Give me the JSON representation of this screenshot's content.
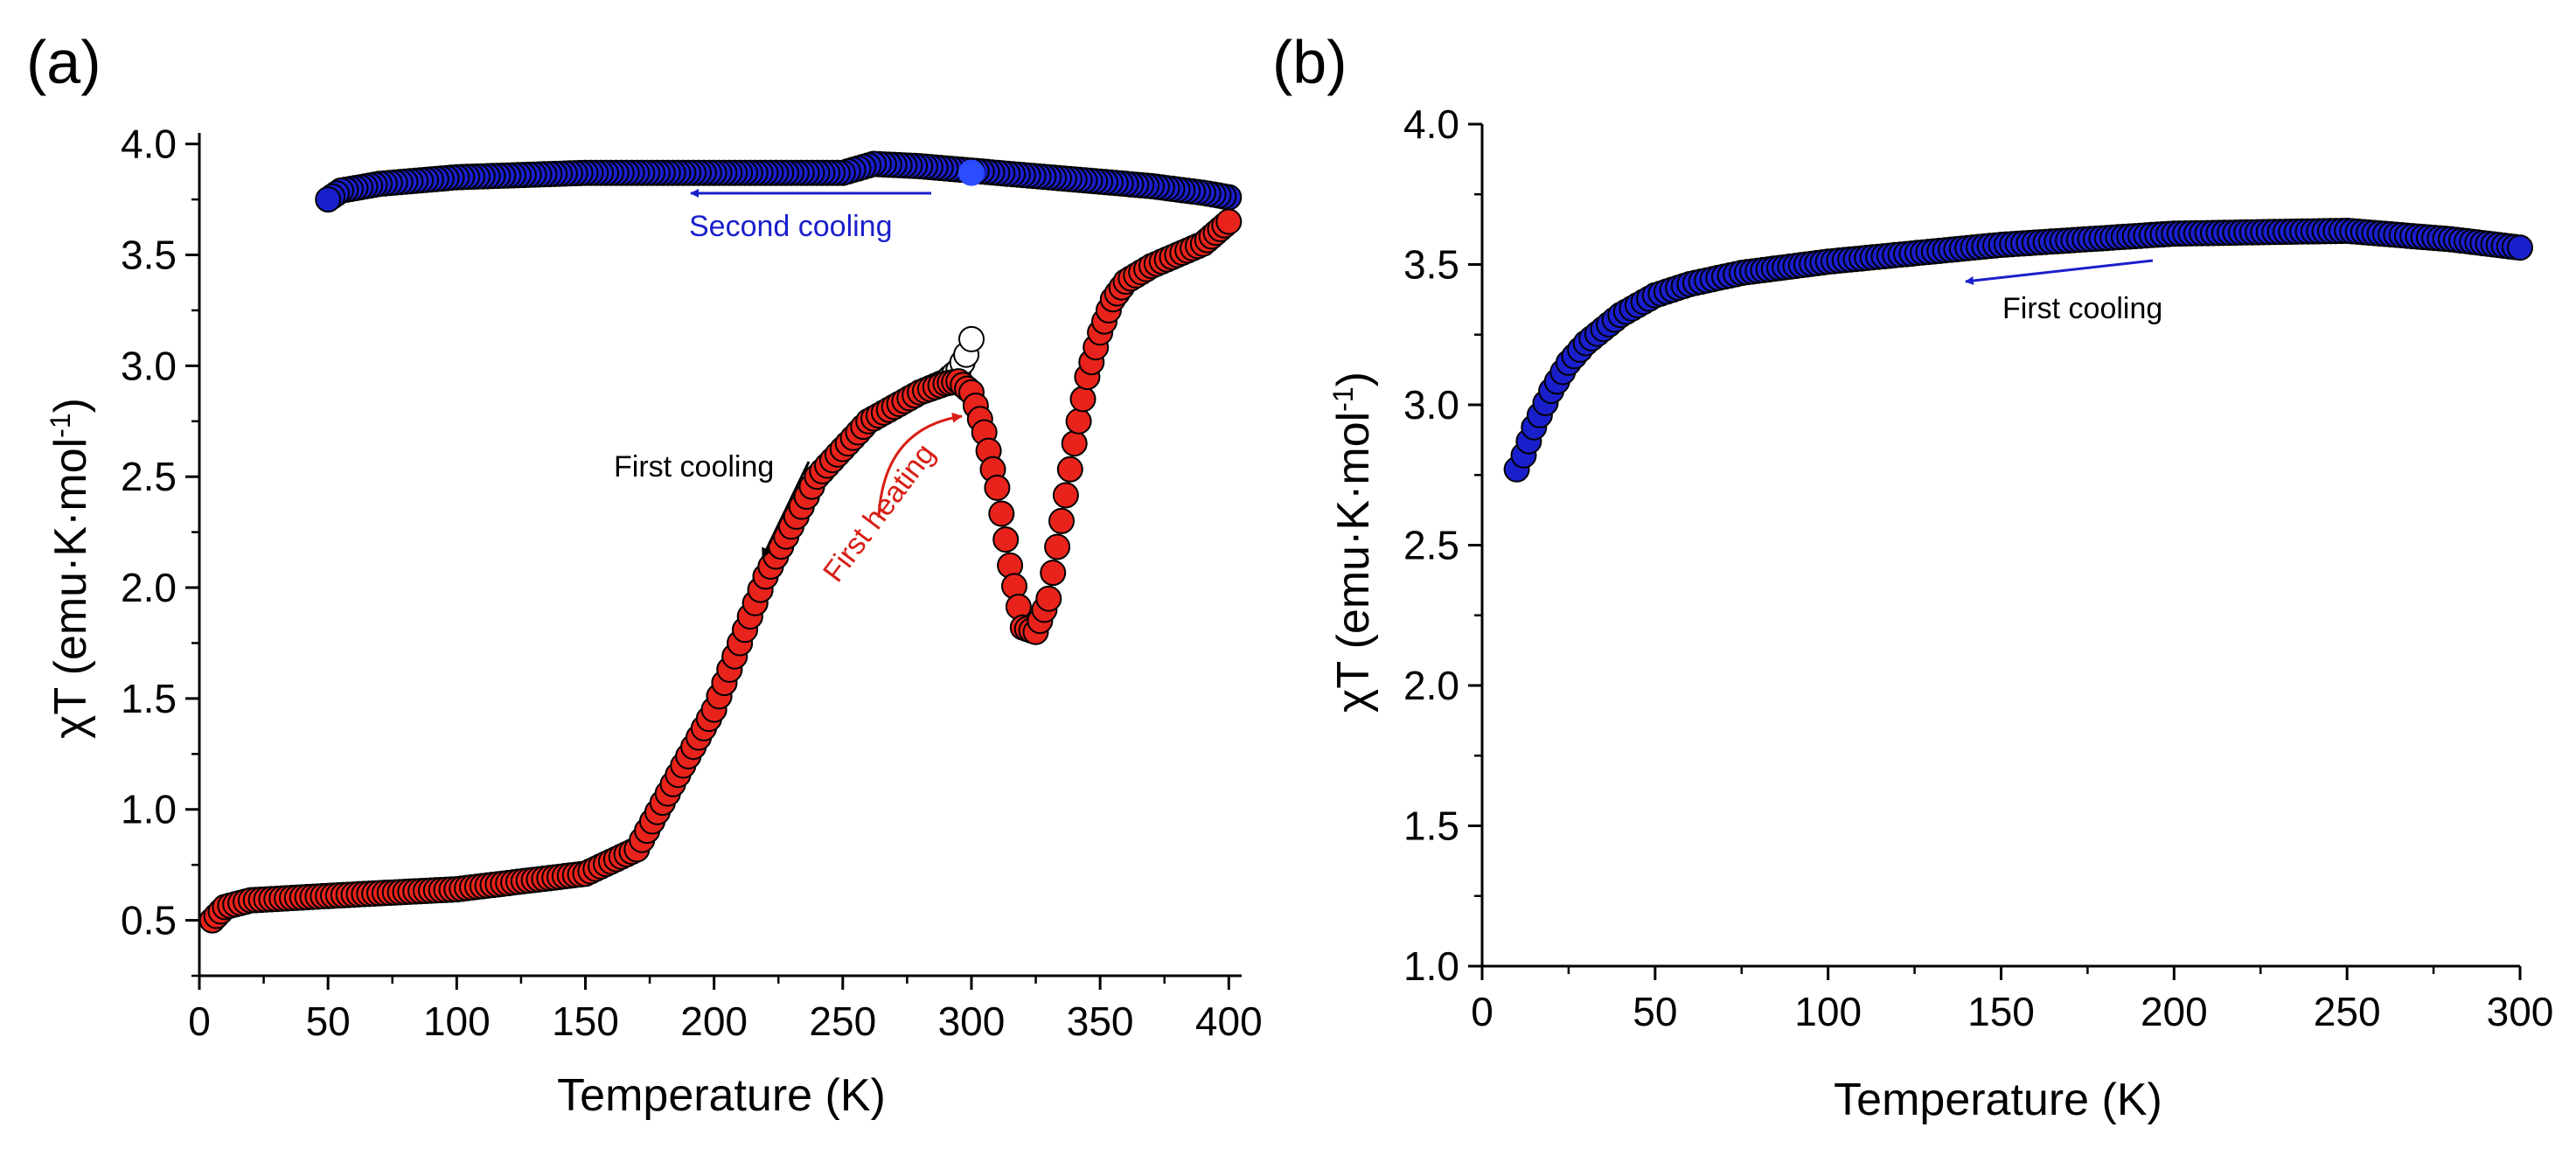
{
  "colors": {
    "first_cooling": "#ffffff",
    "first_heating": "#e8231b",
    "second_cooling": "#1a1fcc",
    "marker_edge": "#000000",
    "annot_red": "#d81e15",
    "annot_blue": "#1a1fcc"
  },
  "chart_data": [
    {
      "panel_label": "(a)",
      "type": "scatter",
      "xlabel": "Temperature (K)",
      "ylabel": "χT (emu·K·mol⁻¹)",
      "ylabel_main": "χT (emu·K·mol",
      "ylabel_sup": "-1",
      "ylabel_close": ")",
      "xlim": [
        0,
        405
      ],
      "ylim": [
        0.25,
        4.05
      ],
      "xticks": [
        "0",
        "50",
        "100",
        "150",
        "200",
        "250",
        "300",
        "350",
        "400"
      ],
      "xtick_values": [
        0,
        50,
        100,
        150,
        200,
        250,
        300,
        350,
        400
      ],
      "yticks": [
        "0.5",
        "1.0",
        "1.5",
        "2.0",
        "2.5",
        "3.0",
        "3.5",
        "4.0"
      ],
      "ytick_values": [
        0.5,
        1.0,
        1.5,
        2.0,
        2.5,
        3.0,
        3.5,
        4.0
      ],
      "series": [
        {
          "key": "first_cooling",
          "marker": "open-circle",
          "x": [
            5,
            10,
            20,
            50,
            100,
            150,
            170,
            200,
            220,
            240,
            260,
            280,
            290,
            295,
            298,
            300
          ],
          "y": [
            0.5,
            0.56,
            0.59,
            0.61,
            0.64,
            0.71,
            0.82,
            1.45,
            2.05,
            2.5,
            2.75,
            2.88,
            2.93,
            2.98,
            3.05,
            3.12
          ]
        },
        {
          "key": "first_heating",
          "marker": "red-circle",
          "x": [
            5,
            10,
            20,
            50,
            100,
            150,
            170,
            200,
            220,
            240,
            260,
            280,
            290,
            295,
            300,
            305,
            310,
            315,
            320,
            325,
            330,
            335,
            340,
            345,
            350,
            355,
            360,
            370,
            380,
            390,
            395,
            400
          ],
          "y": [
            0.5,
            0.56,
            0.59,
            0.61,
            0.64,
            0.71,
            0.82,
            1.45,
            2.05,
            2.5,
            2.75,
            2.88,
            2.92,
            2.93,
            2.88,
            2.7,
            2.45,
            2.1,
            1.82,
            1.8,
            1.95,
            2.3,
            2.65,
            2.95,
            3.15,
            3.3,
            3.38,
            3.45,
            3.5,
            3.55,
            3.6,
            3.65
          ]
        },
        {
          "key": "second_cooling",
          "marker": "blue-circle",
          "x": [
            400,
            390,
            370,
            350,
            320,
            300,
            280,
            262,
            250,
            240,
            200,
            150,
            100,
            70,
            55,
            50
          ],
          "y": [
            3.76,
            3.78,
            3.81,
            3.83,
            3.86,
            3.88,
            3.9,
            3.91,
            3.87,
            3.87,
            3.87,
            3.87,
            3.85,
            3.82,
            3.79,
            3.75
          ]
        }
      ],
      "annotations": [
        {
          "key": "second_cooling",
          "text": "Second cooling",
          "color": "annot_blue"
        },
        {
          "key": "first_cooling",
          "text": "First cooling",
          "color": "marker_edge"
        },
        {
          "key": "first_heating",
          "text": "First heating",
          "color": "annot_red"
        }
      ]
    },
    {
      "panel_label": "(b)",
      "type": "scatter",
      "xlabel": "Temperature (K)",
      "ylabel": "χT (emu·K·mol⁻¹)",
      "ylabel_main": "χT (emu·K·mol",
      "ylabel_sup": "-1",
      "ylabel_close": ")",
      "xlim": [
        0,
        300
      ],
      "ylim": [
        1.0,
        4.0
      ],
      "xticks": [
        "0",
        "50",
        "100",
        "150",
        "200",
        "250",
        "300"
      ],
      "xtick_values": [
        0,
        50,
        100,
        150,
        200,
        250,
        300
      ],
      "yticks": [
        "1.0",
        "1.5",
        "2.0",
        "2.5",
        "3.0",
        "3.5",
        "4.0"
      ],
      "ytick_values": [
        1.0,
        1.5,
        2.0,
        2.5,
        3.0,
        3.5,
        4.0
      ],
      "series": [
        {
          "key": "first_cooling_b",
          "marker": "blue-circle",
          "x": [
            10,
            12,
            15,
            20,
            25,
            30,
            40,
            50,
            60,
            75,
            100,
            150,
            200,
            250,
            280,
            300
          ],
          "y": [
            2.77,
            2.82,
            2.92,
            3.05,
            3.15,
            3.22,
            3.32,
            3.39,
            3.43,
            3.47,
            3.51,
            3.57,
            3.61,
            3.62,
            3.59,
            3.56
          ]
        }
      ],
      "annotations": [
        {
          "key": "first_cooling_b",
          "text": "First cooling",
          "color": "marker_edge"
        }
      ]
    }
  ]
}
